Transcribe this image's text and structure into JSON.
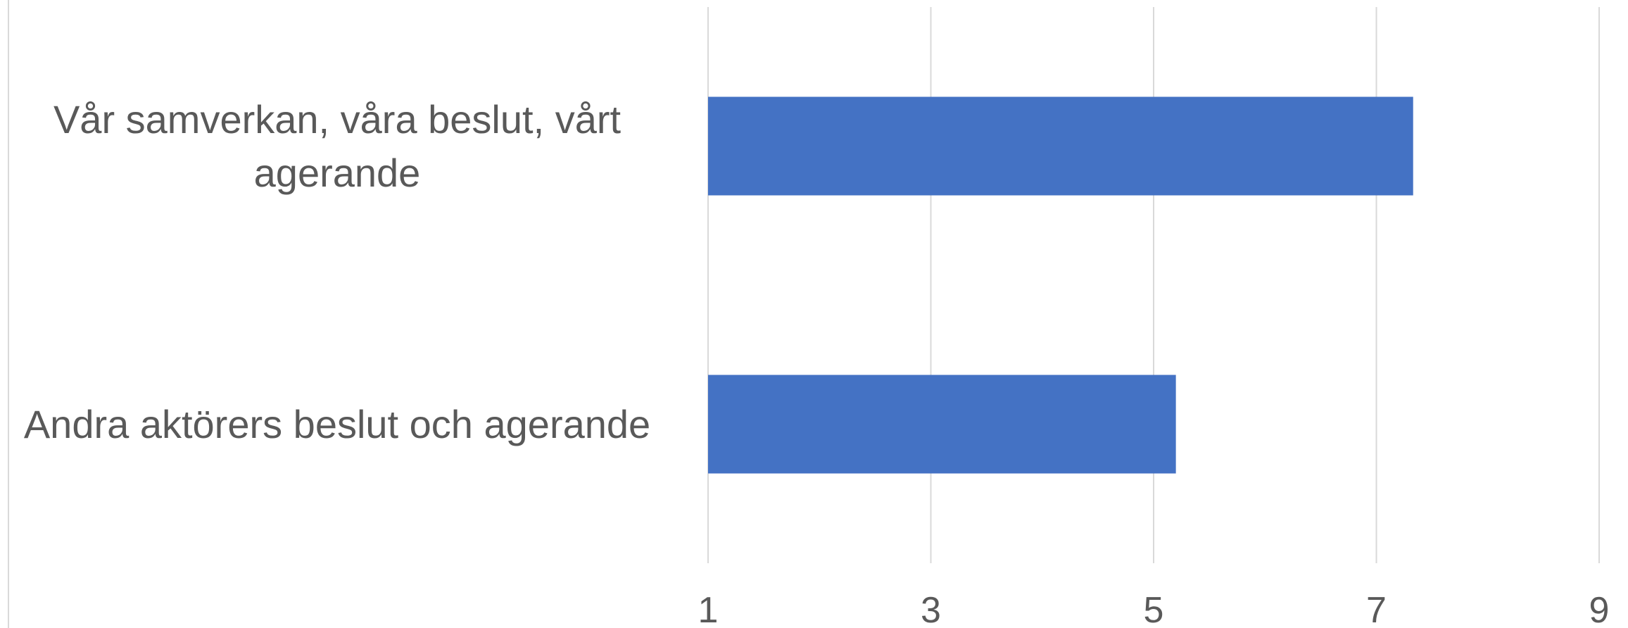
{
  "chart_data": {
    "type": "bar",
    "orientation": "horizontal",
    "categories": [
      "Vår samverkan, våra beslut, vårt agerande",
      "Andra aktörers beslut och agerande"
    ],
    "values": [
      7.33,
      5.2
    ],
    "color": "#4472c4",
    "xlim": [
      1,
      9
    ],
    "xticks": [
      1,
      3,
      5,
      7,
      9
    ],
    "grid": true
  }
}
